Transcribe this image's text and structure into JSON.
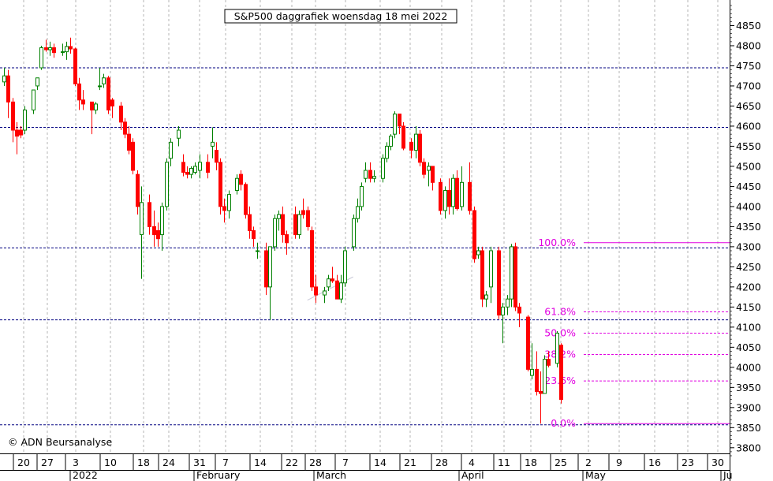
{
  "chart_data": {
    "type": "candlestick",
    "title": "S&P500 daggrafiek woensdag 18 mei 2022",
    "watermark": "© ADN Beursanalyse",
    "ylim": [
      3780,
      4900
    ],
    "y_ticks": [
      3800,
      3850,
      3900,
      3950,
      4000,
      4050,
      4100,
      4150,
      4200,
      4250,
      4300,
      4350,
      4400,
      4450,
      4500,
      4550,
      4600,
      4650,
      4700,
      4750,
      4800,
      4850
    ],
    "x_ticks": [
      "20",
      "27",
      "3",
      "10",
      "18",
      "24",
      "31",
      "7",
      "14",
      "22",
      "28",
      "7",
      "14",
      "21",
      "28",
      "4",
      "11",
      "18",
      "25",
      "2",
      "9",
      "16",
      "23",
      "30"
    ],
    "months": [
      "2022",
      "February",
      "March",
      "April",
      "May",
      "Ju"
    ],
    "colors": {
      "up": "#008000",
      "down": "#ff0000",
      "support": "#000080",
      "fib": "#e000e0"
    },
    "grid": true,
    "support_lines": [
      4745,
      4597,
      4297,
      4118,
      3857
    ],
    "fib_levels": [
      {
        "label": "100.0%",
        "value": 4310
      },
      {
        "label": "61.8%",
        "value": 4138
      },
      {
        "label": "50.0%",
        "value": 4085
      },
      {
        "label": "38.2%",
        "value": 4032
      },
      {
        "label": "23.6%",
        "value": 3966
      },
      {
        "label": "0.0%",
        "value": 3860
      }
    ],
    "trend_line": {
      "from": {
        "day": 73,
        "value": 4167
      },
      "to": {
        "day": 84,
        "value": 4225
      }
    },
    "candles": [
      {
        "day": 0,
        "o": 4710,
        "h": 4745,
        "l": 4700,
        "c": 4725
      },
      {
        "day": 1,
        "o": 4725,
        "h": 4740,
        "l": 4620,
        "c": 4660
      },
      {
        "day": 2,
        "o": 4660,
        "h": 4670,
        "l": 4560,
        "c": 4590
      },
      {
        "day": 3,
        "o": 4590,
        "h": 4610,
        "l": 4530,
        "c": 4575
      },
      {
        "day": 4,
        "o": 4590,
        "h": 4600,
        "l": 4570,
        "c": 4578
      },
      {
        "day": 5,
        "o": 4590,
        "h": 4650,
        "l": 4580,
        "c": 4640
      },
      {
        "day": 7,
        "o": 4640,
        "h": 4690,
        "l": 4630,
        "c": 4690
      },
      {
        "day": 8,
        "o": 4700,
        "h": 4720,
        "l": 4690,
        "c": 4720
      },
      {
        "day": 9,
        "o": 4745,
        "h": 4800,
        "l": 4740,
        "c": 4795
      },
      {
        "day": 10,
        "o": 4795,
        "h": 4815,
        "l": 4785,
        "c": 4790
      },
      {
        "day": 11,
        "o": 4790,
        "h": 4810,
        "l": 4775,
        "c": 4795
      },
      {
        "day": 12,
        "o": 4795,
        "h": 4805,
        "l": 4770,
        "c": 4783
      },
      {
        "day": 14,
        "o": 4783,
        "h": 4805,
        "l": 4775,
        "c": 4785
      },
      {
        "day": 15,
        "o": 4785,
        "h": 4810,
        "l": 4765,
        "c": 4798
      },
      {
        "day": 16,
        "o": 4798,
        "h": 4820,
        "l": 4780,
        "c": 4792
      },
      {
        "day": 17,
        "o": 4792,
        "h": 4795,
        "l": 4700,
        "c": 4705
      },
      {
        "day": 18,
        "o": 4705,
        "h": 4720,
        "l": 4640,
        "c": 4665
      },
      {
        "day": 19,
        "o": 4665,
        "h": 4690,
        "l": 4640,
        "c": 4655
      },
      {
        "day": 21,
        "o": 4660,
        "h": 4660,
        "l": 4580,
        "c": 4640
      },
      {
        "day": 22,
        "o": 4640,
        "h": 4660,
        "l": 4630,
        "c": 4655
      },
      {
        "day": 23,
        "o": 4700,
        "h": 4745,
        "l": 4690,
        "c": 4700
      },
      {
        "day": 24,
        "o": 4705,
        "h": 4730,
        "l": 4695,
        "c": 4720
      },
      {
        "day": 25,
        "o": 4720,
        "h": 4725,
        "l": 4630,
        "c": 4640
      },
      {
        "day": 26,
        "o": 4665,
        "h": 4670,
        "l": 4620,
        "c": 4650
      },
      {
        "day": 28,
        "o": 4650,
        "h": 4660,
        "l": 4590,
        "c": 4610
      },
      {
        "day": 29,
        "o": 4610,
        "h": 4620,
        "l": 4570,
        "c": 4580
      },
      {
        "day": 30,
        "o": 4580,
        "h": 4600,
        "l": 4530,
        "c": 4540
      },
      {
        "day": 31,
        "o": 4560,
        "h": 4570,
        "l": 4480,
        "c": 4490
      },
      {
        "day": 32,
        "o": 4480,
        "h": 4490,
        "l": 4380,
        "c": 4400
      },
      {
        "day": 33,
        "o": 4330,
        "h": 4450,
        "l": 4220,
        "c": 4410
      },
      {
        "day": 35,
        "o": 4410,
        "h": 4430,
        "l": 4330,
        "c": 4350
      },
      {
        "day": 36,
        "o": 4350,
        "h": 4390,
        "l": 4300,
        "c": 4330
      },
      {
        "day": 37,
        "o": 4340,
        "h": 4360,
        "l": 4300,
        "c": 4320
      },
      {
        "day": 38,
        "o": 4330,
        "h": 4410,
        "l": 4290,
        "c": 4400
      },
      {
        "day": 39,
        "o": 4400,
        "h": 4520,
        "l": 4390,
        "c": 4510
      },
      {
        "day": 40,
        "o": 4520,
        "h": 4570,
        "l": 4500,
        "c": 4560
      },
      {
        "day": 42,
        "o": 4570,
        "h": 4600,
        "l": 4550,
        "c": 4590
      },
      {
        "day": 43,
        "o": 4510,
        "h": 4530,
        "l": 4475,
        "c": 4485
      },
      {
        "day": 44,
        "o": 4485,
        "h": 4500,
        "l": 4470,
        "c": 4480
      },
      {
        "day": 45,
        "o": 4480,
        "h": 4500,
        "l": 4470,
        "c": 4495
      },
      {
        "day": 46,
        "o": 4485,
        "h": 4510,
        "l": 4480,
        "c": 4500
      },
      {
        "day": 47,
        "o": 4490,
        "h": 4530,
        "l": 4470,
        "c": 4510
      },
      {
        "day": 49,
        "o": 4510,
        "h": 4530,
        "l": 4470,
        "c": 4485
      },
      {
        "day": 50,
        "o": 4550,
        "h": 4597,
        "l": 4520,
        "c": 4560
      },
      {
        "day": 51,
        "o": 4540,
        "h": 4560,
        "l": 4490,
        "c": 4510
      },
      {
        "day": 52,
        "o": 4510,
        "h": 4520,
        "l": 4380,
        "c": 4400
      },
      {
        "day": 53,
        "o": 4400,
        "h": 4420,
        "l": 4360,
        "c": 4390
      },
      {
        "day": 54,
        "o": 4390,
        "h": 4440,
        "l": 4370,
        "c": 4430
      },
      {
        "day": 56,
        "o": 4440,
        "h": 4480,
        "l": 4430,
        "c": 4470
      },
      {
        "day": 57,
        "o": 4480,
        "h": 4490,
        "l": 4440,
        "c": 4455
      },
      {
        "day": 58,
        "o": 4455,
        "h": 4460,
        "l": 4370,
        "c": 4380
      },
      {
        "day": 59,
        "o": 4380,
        "h": 4400,
        "l": 4320,
        "c": 4340
      },
      {
        "day": 60,
        "o": 4340,
        "h": 4350,
        "l": 4300,
        "c": 4320
      },
      {
        "day": 61,
        "o": 4290,
        "h": 4310,
        "l": 4270,
        "c": 4290
      },
      {
        "day": 63,
        "o": 4290,
        "h": 4310,
        "l": 4180,
        "c": 4200
      },
      {
        "day": 64,
        "o": 4200,
        "h": 4300,
        "l": 4118,
        "c": 4300
      },
      {
        "day": 65,
        "o": 4300,
        "h": 4380,
        "l": 4290,
        "c": 4370
      },
      {
        "day": 66,
        "o": 4370,
        "h": 4390,
        "l": 4340,
        "c": 4380
      },
      {
        "day": 67,
        "o": 4380,
        "h": 4400,
        "l": 4310,
        "c": 4330
      },
      {
        "day": 68,
        "o": 4330,
        "h": 4340,
        "l": 4280,
        "c": 4310
      },
      {
        "day": 70,
        "o": 4380,
        "h": 4400,
        "l": 4320,
        "c": 4330
      },
      {
        "day": 71,
        "o": 4330,
        "h": 4390,
        "l": 4320,
        "c": 4380
      },
      {
        "day": 72,
        "o": 4390,
        "h": 4420,
        "l": 4370,
        "c": 4380
      },
      {
        "day": 73,
        "o": 4390,
        "h": 4400,
        "l": 4340,
        "c": 4350
      },
      {
        "day": 74,
        "o": 4340,
        "h": 4350,
        "l": 4190,
        "c": 4200
      },
      {
        "day": 75,
        "o": 4200,
        "h": 4230,
        "l": 4160,
        "c": 4180
      },
      {
        "day": 77,
        "o": 4180,
        "h": 4200,
        "l": 4160,
        "c": 4190
      },
      {
        "day": 78,
        "o": 4200,
        "h": 4230,
        "l": 4190,
        "c": 4220
      },
      {
        "day": 79,
        "o": 4220,
        "h": 4250,
        "l": 4210,
        "c": 4215
      },
      {
        "day": 80,
        "o": 4215,
        "h": 4230,
        "l": 4170,
        "c": 4170
      },
      {
        "day": 81,
        "o": 4170,
        "h": 4230,
        "l": 4160,
        "c": 4210
      },
      {
        "day": 82,
        "o": 4210,
        "h": 4300,
        "l": 4200,
        "c": 4290
      },
      {
        "day": 84,
        "o": 4300,
        "h": 4380,
        "l": 4290,
        "c": 4370
      },
      {
        "day": 85,
        "o": 4370,
        "h": 4420,
        "l": 4360,
        "c": 4400
      },
      {
        "day": 86,
        "o": 4400,
        "h": 4460,
        "l": 4390,
        "c": 4450
      },
      {
        "day": 87,
        "o": 4470,
        "h": 4510,
        "l": 4460,
        "c": 4490
      },
      {
        "day": 88,
        "o": 4490,
        "h": 4510,
        "l": 4460,
        "c": 4470
      },
      {
        "day": 89,
        "o": 4470,
        "h": 4490,
        "l": 4460,
        "c": 4475
      },
      {
        "day": 91,
        "o": 4470,
        "h": 4530,
        "l": 4460,
        "c": 4520
      },
      {
        "day": 92,
        "o": 4520,
        "h": 4560,
        "l": 4510,
        "c": 4550
      },
      {
        "day": 93,
        "o": 4550,
        "h": 4580,
        "l": 4540,
        "c": 4575
      },
      {
        "day": 94,
        "o": 4580,
        "h": 4637,
        "l": 4570,
        "c": 4630
      },
      {
        "day": 95,
        "o": 4630,
        "h": 4630,
        "l": 4580,
        "c": 4600
      },
      {
        "day": 96,
        "o": 4600,
        "h": 4610,
        "l": 4540,
        "c": 4545
      },
      {
        "day": 98,
        "o": 4560,
        "h": 4570,
        "l": 4520,
        "c": 4540
      },
      {
        "day": 99,
        "o": 4540,
        "h": 4600,
        "l": 4520,
        "c": 4580
      },
      {
        "day": 100,
        "o": 4580,
        "h": 4590,
        "l": 4500,
        "c": 4510
      },
      {
        "day": 101,
        "o": 4510,
        "h": 4520,
        "l": 4470,
        "c": 4480
      },
      {
        "day": 102,
        "o": 4490,
        "h": 4510,
        "l": 4450,
        "c": 4500
      },
      {
        "day": 103,
        "o": 4500,
        "h": 4500,
        "l": 4440,
        "c": 4460
      },
      {
        "day": 105,
        "o": 4460,
        "h": 4470,
        "l": 4380,
        "c": 4390
      },
      {
        "day": 106,
        "o": 4390,
        "h": 4450,
        "l": 4370,
        "c": 4440
      },
      {
        "day": 107,
        "o": 4440,
        "h": 4470,
        "l": 4380,
        "c": 4400
      },
      {
        "day": 108,
        "o": 4400,
        "h": 4480,
        "l": 4380,
        "c": 4470
      },
      {
        "day": 109,
        "o": 4470,
        "h": 4490,
        "l": 4390,
        "c": 4395
      },
      {
        "day": 110,
        "o": 4400,
        "h": 4500,
        "l": 4390,
        "c": 4460
      },
      {
        "day": 112,
        "o": 4460,
        "h": 4510,
        "l": 4380,
        "c": 4390
      },
      {
        "day": 113,
        "o": 4390,
        "h": 4400,
        "l": 4260,
        "c": 4270
      },
      {
        "day": 114,
        "o": 4280,
        "h": 4300,
        "l": 4270,
        "c": 4290
      },
      {
        "day": 115,
        "o": 4290,
        "h": 4300,
        "l": 4150,
        "c": 4170
      },
      {
        "day": 116,
        "o": 4170,
        "h": 4190,
        "l": 4150,
        "c": 4180
      },
      {
        "day": 117,
        "o": 4200,
        "h": 4300,
        "l": 4160,
        "c": 4290
      },
      {
        "day": 119,
        "o": 4290,
        "h": 4300,
        "l": 4120,
        "c": 4130
      },
      {
        "day": 120,
        "o": 4130,
        "h": 4160,
        "l": 4060,
        "c": 4150
      },
      {
        "day": 121,
        "o": 4150,
        "h": 4180,
        "l": 4130,
        "c": 4170
      },
      {
        "day": 122,
        "o": 4170,
        "h": 4307,
        "l": 4150,
        "c": 4300
      },
      {
        "day": 123,
        "o": 4300,
        "h": 4310,
        "l": 4140,
        "c": 4150
      },
      {
        "day": 124,
        "o": 4150,
        "h": 4160,
        "l": 4100,
        "c": 4135
      },
      {
        "day": 126,
        "o": 4125,
        "h": 4130,
        "l": 3990,
        "c": 3995
      },
      {
        "day": 127,
        "o": 3980,
        "h": 4060,
        "l": 3970,
        "c": 3995
      },
      {
        "day": 128,
        "o": 3995,
        "h": 4040,
        "l": 3930,
        "c": 3940
      },
      {
        "day": 129,
        "o": 3940,
        "h": 3990,
        "l": 3860,
        "c": 3935
      },
      {
        "day": 130,
        "o": 3935,
        "h": 4030,
        "l": 3935,
        "c": 4020
      },
      {
        "day": 131,
        "o": 4020,
        "h": 4040,
        "l": 4000,
        "c": 4005
      },
      {
        "day": 133,
        "o": 4010,
        "h": 4090,
        "l": 4000,
        "c": 4085
      },
      {
        "day": 134,
        "o": 4055,
        "h": 4060,
        "l": 3910,
        "c": 3920
      }
    ]
  }
}
